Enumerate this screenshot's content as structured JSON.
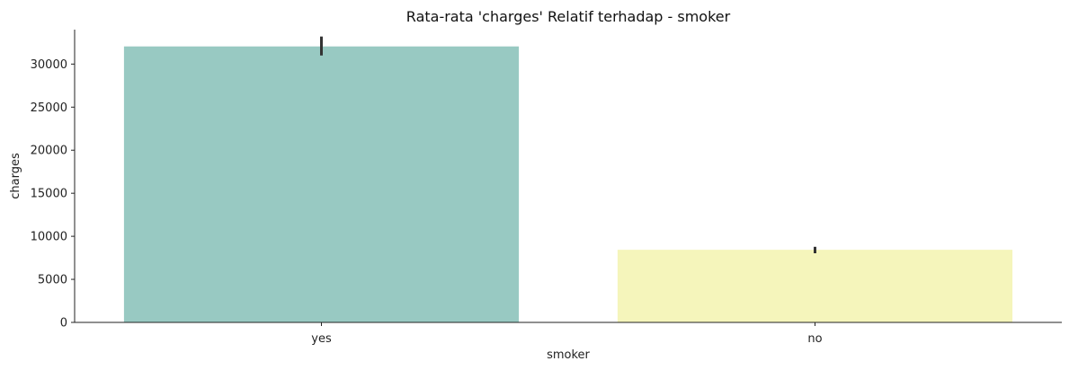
{
  "chart_data": {
    "type": "bar",
    "title": "Rata-rata 'charges' Relatif terhadap - smoker",
    "xlabel": "smoker",
    "ylabel": "charges",
    "categories": [
      "yes",
      "no"
    ],
    "values": [
      32050,
      8434
    ],
    "error_bars": [
      [
        31000,
        33200
      ],
      [
        8030,
        8780
      ]
    ],
    "ylim": [
      0,
      34000
    ],
    "yticks": [
      0,
      5000,
      10000,
      15000,
      20000,
      25000,
      30000
    ],
    "colors": [
      "#98c9c2",
      "#f5f5bb"
    ],
    "error_bar_color": "#333333",
    "grid": false,
    "legend": "none"
  }
}
